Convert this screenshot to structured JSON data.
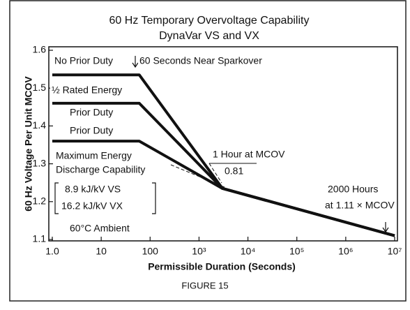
{
  "chart_data": {
    "type": "line",
    "title": "60 Hz Temporary Overvoltage Capability",
    "subtitle": "DynaVar VS and VX",
    "y_label": "60 Hz Voltage Per Unit MCOV",
    "x_label": "Permissible Duration (Seconds)",
    "caption": "FIGURE 15",
    "log_x": true,
    "x": [
      1,
      60,
      3000,
      10000000
    ],
    "series": [
      {
        "color": "#111111",
        "values": [
          1.535,
          1.535,
          1.235,
          1.11
        ]
      },
      {
        "color": "#111111",
        "values": [
          1.46,
          1.46,
          1.235,
          1.11
        ]
      },
      {
        "color": "#111111",
        "values": [
          1.36,
          1.36,
          1.235,
          1.11
        ]
      }
    ],
    "xlim": [
      1,
      10000000
    ],
    "ylim": [
      1.1,
      1.6
    ],
    "xticks": [
      {
        "value": 1,
        "label": "1.0"
      },
      10,
      100,
      {
        "value": 1000,
        "label": "10³"
      },
      {
        "value": 10000,
        "label": "10⁴"
      },
      {
        "value": 100000,
        "label": "10⁵"
      },
      {
        "value": 1000000,
        "label": "10⁶"
      },
      {
        "value": 10000000,
        "label": "10⁷"
      }
    ],
    "yticks": [
      1.1,
      1.2,
      1.3,
      1.4,
      1.5,
      1.6
    ],
    "annotations": [
      "No Prior Duty",
      "½ Rated Energy",
      "Prior Duty",
      "Prior Duty",
      "60 Seconds Near Sparkover",
      "Maximum Energy",
      "Discharge Capability",
      "8.9 kJ/kV VS",
      "16.2 kJ/kV VX",
      "60°C Ambient",
      "1 Hour at MCOV",
      "0.81",
      "2000 Hours",
      "at 1.11 × MCOV"
    ]
  }
}
